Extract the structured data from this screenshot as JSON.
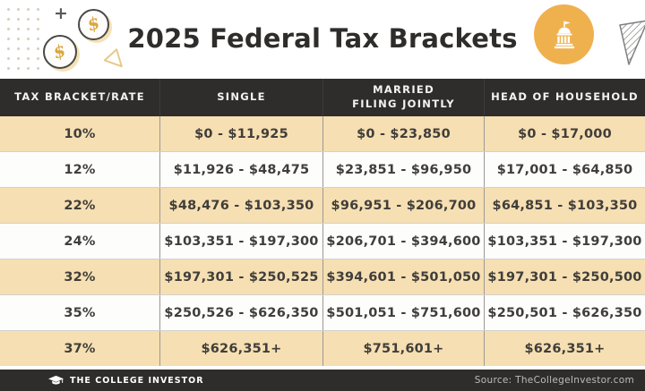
{
  "title": "2025 Federal Tax Brackets",
  "chart_data": {
    "type": "table",
    "title": "2025 Federal Tax Brackets",
    "columns": [
      "TAX BRACKET/RATE",
      "SINGLE",
      "MARRIED FILING JOINTLY",
      "HEAD OF HOUSEHOLD"
    ],
    "rows": [
      [
        "10%",
        "$0 - $11,925",
        "$0 - $23,850",
        "$0 - $17,000"
      ],
      [
        "12%",
        "$11,926 - $48,475",
        "$23,851 - $96,950",
        "$17,001 - $64,850"
      ],
      [
        "22%",
        "$48,476 - $103,350",
        "$96,951 - $206,700",
        "$64,851 - $103,350"
      ],
      [
        "24%",
        "$103,351 - $197,300",
        "$206,701 - $394,600",
        "$103,351 - $197,300"
      ],
      [
        "32%",
        "$197,301 - $250,525",
        "$394,601 - $501,050",
        "$197,301 - $250,500"
      ],
      [
        "35%",
        "$250,526 - $626,350",
        "$501,051 - $751,600",
        "$250,501 - $626,350"
      ],
      [
        "37%",
        "$626,351+",
        "$751,601+",
        "$626,351+"
      ]
    ]
  },
  "table": {
    "header_lines": [
      [
        "TAX BRACKET/RATE"
      ],
      [
        "SINGLE"
      ],
      [
        "MARRIED",
        "FILING JOINTLY"
      ],
      [
        "HEAD OF HOUSEHOLD"
      ]
    ]
  },
  "footer": {
    "brand": "THE COLLEGE INVESTOR",
    "source": "Source: TheCollegeInvestor.com"
  },
  "icons": {
    "plus": "+",
    "dollar": "$",
    "capitol": "capitol-building-icon",
    "graduation_cap": "graduation-cap-icon",
    "striped_triangle": "striped-triangle-icon",
    "outline_triangle": "outline-triangle-icon",
    "dot_grid": "dot-grid-pattern"
  },
  "colors": {
    "dark": "#2e2d2c",
    "tan_row": "#f6dfb2",
    "white_row": "#fdfdfc",
    "accent_orange": "#efb14e",
    "coin_gold": "#d9a73e",
    "header_text": "#f4f3f1",
    "body_text": "#403e3b",
    "source_text": "#bdbcba"
  }
}
